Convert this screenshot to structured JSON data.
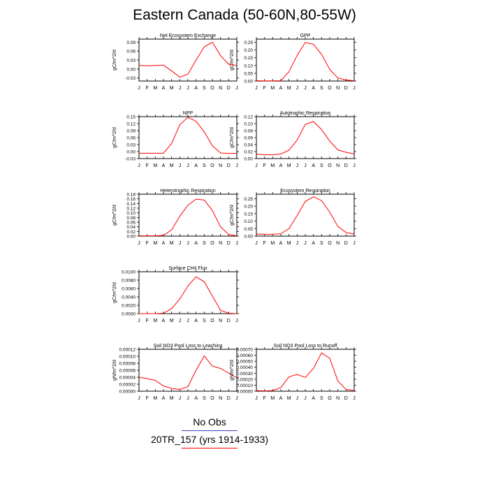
{
  "page_title": "Eastern Canada (50-60N,80-55W)",
  "colors": {
    "model_line": "#ff0000",
    "obs_line": "#4040c0",
    "axis": "#000000"
  },
  "legend": {
    "obs_label": "No Obs",
    "model_label": "20TR_157 (yrs 1914-1933)"
  },
  "chart_data": [
    {
      "type": "line",
      "title": "Net Ecosystem Exchange",
      "ylabel": "gC/m^2/d",
      "categories": [
        "J",
        "F",
        "M",
        "A",
        "M",
        "J",
        "J",
        "A",
        "S",
        "O",
        "N",
        "D",
        "J"
      ],
      "ylim": [
        -0.04,
        0.1
      ],
      "yticks": [
        -0.03,
        0.0,
        0.03,
        0.06,
        0.09
      ],
      "ytick_labels": [
        "-0.03",
        "0.00",
        "0.03",
        "0.06",
        "0.09"
      ],
      "series": [
        {
          "values": [
            0.012,
            0.011,
            0.012,
            0.013,
            -0.006,
            -0.027,
            -0.017,
            0.03,
            0.074,
            0.09,
            0.045,
            0.016,
            0.012
          ]
        }
      ]
    },
    {
      "type": "line",
      "title": "GPP",
      "ylabel": "gC/m^2/d",
      "categories": [
        "J",
        "F",
        "M",
        "A",
        "M",
        "J",
        "J",
        "A",
        "S",
        "O",
        "N",
        "D",
        "J"
      ],
      "ylim": [
        0,
        0.27
      ],
      "yticks": [
        0,
        0.05,
        0.1,
        0.15,
        0.2,
        0.25
      ],
      "ytick_labels": [
        "0.00",
        "0.05",
        "0.10",
        "0.15",
        "0.20",
        "0.25"
      ],
      "series": [
        {
          "values": [
            0.002,
            0.001,
            0.001,
            0.002,
            0.06,
            0.165,
            0.248,
            0.237,
            0.172,
            0.075,
            0.02,
            0.006,
            0.002
          ]
        }
      ]
    },
    {
      "type": "line",
      "title": "NPP",
      "ylabel": "gC/m^2/d",
      "categories": [
        "J",
        "F",
        "M",
        "A",
        "M",
        "J",
        "J",
        "A",
        "S",
        "O",
        "N",
        "D",
        "J"
      ],
      "ylim": [
        -0.03,
        0.15
      ],
      "yticks": [
        -0.03,
        0.0,
        0.03,
        0.06,
        0.09,
        0.12,
        0.15
      ],
      "ytick_labels": [
        "-0.03",
        "0.00",
        "0.03",
        "0.06",
        "0.09",
        "0.12",
        "0.15"
      ],
      "series": [
        {
          "values": [
            -0.007,
            -0.007,
            -0.007,
            -0.007,
            0.035,
            0.115,
            0.148,
            0.13,
            0.085,
            0.025,
            -0.006,
            -0.008,
            -0.007
          ]
        }
      ]
    },
    {
      "type": "line",
      "title": "Autotrophic Respiration",
      "ylabel": "gC/m^2/d",
      "categories": [
        "J",
        "F",
        "M",
        "A",
        "M",
        "J",
        "J",
        "A",
        "S",
        "O",
        "N",
        "D",
        "J"
      ],
      "ylim": [
        0,
        0.12
      ],
      "yticks": [
        0,
        0.02,
        0.04,
        0.06,
        0.08,
        0.1,
        0.12
      ],
      "ytick_labels": [
        "0.00",
        "0.02",
        "0.04",
        "0.06",
        "0.08",
        "0.10",
        "0.12"
      ],
      "series": [
        {
          "values": [
            0.013,
            0.011,
            0.011,
            0.013,
            0.024,
            0.053,
            0.098,
            0.106,
            0.083,
            0.05,
            0.025,
            0.018,
            0.013
          ]
        }
      ]
    },
    {
      "type": "line",
      "title": "Heterotrophic Respiration",
      "ylabel": "gC/m^2/d",
      "categories": [
        "J",
        "F",
        "M",
        "A",
        "M",
        "J",
        "J",
        "A",
        "S",
        "O",
        "N",
        "D",
        "J"
      ],
      "ylim": [
        0,
        0.18
      ],
      "yticks": [
        0,
        0.02,
        0.04,
        0.06,
        0.08,
        0.1,
        0.12,
        0.14,
        0.16,
        0.18
      ],
      "ytick_labels": [
        "0.00",
        "0.02",
        "0.04",
        "0.06",
        "0.08",
        "0.10",
        "0.12",
        "0.14",
        "0.16",
        "0.18"
      ],
      "series": [
        {
          "values": [
            0.001,
            0.001,
            0.001,
            0.003,
            0.027,
            0.085,
            0.133,
            0.159,
            0.155,
            0.11,
            0.04,
            0.007,
            0.001
          ]
        }
      ]
    },
    {
      "type": "line",
      "title": "Ecosystem Respiration",
      "ylabel": "gC/m^2/d",
      "categories": [
        "J",
        "F",
        "M",
        "A",
        "M",
        "J",
        "J",
        "A",
        "S",
        "O",
        "N",
        "D",
        "J"
      ],
      "ylim": [
        0,
        0.28
      ],
      "yticks": [
        0,
        0.05,
        0.1,
        0.15,
        0.2,
        0.25
      ],
      "ytick_labels": [
        "0.00",
        "0.05",
        "0.10",
        "0.15",
        "0.20",
        "0.25"
      ],
      "series": [
        {
          "values": [
            0.014,
            0.012,
            0.012,
            0.016,
            0.05,
            0.137,
            0.232,
            0.263,
            0.237,
            0.16,
            0.065,
            0.024,
            0.014
          ]
        }
      ]
    },
    {
      "type": "line",
      "title": "Surface CH4 Flux",
      "ylabel": "gC/m^2/d",
      "categories": [
        "J",
        "F",
        "M",
        "A",
        "M",
        "J",
        "J",
        "A",
        "S",
        "O",
        "N",
        "D",
        "J"
      ],
      "ylim": [
        0,
        0.01
      ],
      "yticks": [
        0,
        0.002,
        0.004,
        0.006,
        0.008,
        0.01
      ],
      "ytick_labels": [
        "0.0000",
        "0.0020",
        "0.0040",
        "0.0060",
        "0.0080",
        "0.0100"
      ],
      "series": [
        {
          "values": [
            0.0,
            0.0,
            0.0,
            0.0001,
            0.0012,
            0.0035,
            0.0066,
            0.0088,
            0.0076,
            0.0042,
            0.0008,
            0.0001,
            0.0
          ]
        }
      ]
    },
    {
      "type": "line",
      "title": "Soil NO3 Pool Loss to Leaching",
      "ylabel": "gN/m^2/d",
      "categories": [
        "J",
        "F",
        "M",
        "A",
        "M",
        "J",
        "J",
        "A",
        "S",
        "O",
        "N",
        "D",
        "J"
      ],
      "ylim": [
        0,
        0.00012
      ],
      "yticks": [
        0,
        2e-05,
        4e-05,
        6e-05,
        8e-05,
        0.0001,
        0.00012
      ],
      "ytick_labels": [
        "0.00000",
        "0.00002",
        "0.00004",
        "0.00006",
        "0.00008",
        "0.00010",
        "0.00012"
      ],
      "series": [
        {
          "values": [
            4e-05,
            3.6e-05,
            3.1e-05,
            1.5e-05,
            8e-06,
            5e-06,
            1.3e-05,
            6e-05,
            0.000101,
            7.2e-05,
            6.5e-05,
            5.2e-05,
            3.8e-05
          ]
        }
      ]
    },
    {
      "type": "line",
      "title": "Soil NO3 Pool Loss to Runoff",
      "ylabel": "gN/m^2/d",
      "categories": [
        "J",
        "F",
        "M",
        "A",
        "M",
        "J",
        "J",
        "A",
        "S",
        "O",
        "N",
        "D",
        "J"
      ],
      "ylim": [
        0,
        0.0007
      ],
      "yticks": [
        0,
        0.0001,
        0.0002,
        0.0003,
        0.0004,
        0.0005,
        0.0006,
        0.0007
      ],
      "ytick_labels": [
        "0.00000",
        "0.00010",
        "0.00020",
        "0.00030",
        "0.00040",
        "0.00050",
        "0.00060",
        "0.00070"
      ],
      "series": [
        {
          "values": [
            1e-05,
            5e-06,
            1e-05,
            6e-05,
            0.00024,
            0.00028,
            0.00023,
            0.00038,
            0.00064,
            0.00055,
            0.00017,
            3e-05,
            1e-05
          ]
        }
      ]
    }
  ]
}
